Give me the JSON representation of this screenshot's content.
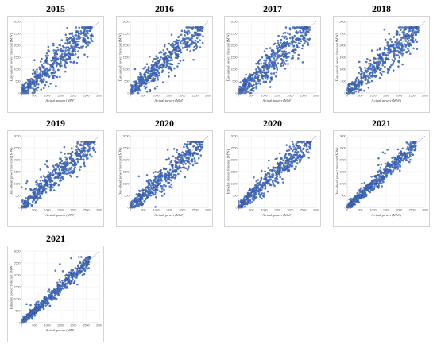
{
  "chart_data": [
    {
      "type": "scatter",
      "title": "2015",
      "xlabel": "Actual power (MW)",
      "ylabel": "Day-ahead power forecast (MW)",
      "xlim": [
        0,
        3000
      ],
      "ylim": [
        0,
        3000
      ],
      "xticks": [
        0,
        500,
        1000,
        1500,
        2000,
        2500,
        3000
      ],
      "yticks": [
        0,
        500,
        1000,
        1500,
        2000,
        2500,
        3000
      ],
      "grid": true,
      "reference_line": "y = x",
      "point_color": "#4472c4",
      "spread": 0.12,
      "x_max": 2750
    },
    {
      "type": "scatter",
      "title": "2016",
      "xlabel": "Actual power (MW)",
      "ylabel": "Day-ahead power forecast (MW)",
      "xlim": [
        0,
        3000
      ],
      "ylim": [
        0,
        3000
      ],
      "xticks": [
        0,
        500,
        1000,
        1500,
        2000,
        2500,
        3000
      ],
      "yticks": [
        0,
        500,
        1000,
        1500,
        2000,
        2500,
        3000
      ],
      "grid": true,
      "reference_line": "y = x",
      "point_color": "#4472c4",
      "spread": 0.11,
      "x_max": 2800
    },
    {
      "type": "scatter",
      "title": "2017",
      "xlabel": "Actual power (MW)",
      "ylabel": "Day-ahead power forecast (MW)",
      "xlim": [
        0,
        3000
      ],
      "ylim": [
        0,
        3000
      ],
      "xticks": [
        0,
        500,
        1000,
        1500,
        2000,
        2500,
        3000
      ],
      "yticks": [
        0,
        500,
        1000,
        1500,
        2000,
        2500,
        3000
      ],
      "grid": true,
      "reference_line": "y = x",
      "point_color": "#4472c4",
      "spread": 0.13,
      "x_max": 2750
    },
    {
      "type": "scatter",
      "title": "2018",
      "xlabel": "Actual power (MW)",
      "ylabel": "Day-ahead power forecast (MW)",
      "xlim": [
        0,
        3000
      ],
      "ylim": [
        0,
        3000
      ],
      "xticks": [
        0,
        500,
        1000,
        1500,
        2000,
        2500,
        3000
      ],
      "yticks": [
        0,
        500,
        1000,
        1500,
        2000,
        2500,
        3000
      ],
      "grid": true,
      "reference_line": "y = x",
      "point_color": "#4472c4",
      "spread": 0.12,
      "x_max": 2750
    },
    {
      "type": "scatter",
      "title": "2019",
      "xlabel": "Actual power (MW)",
      "ylabel": "Day-ahead power forecast (MW)",
      "xlim": [
        0,
        3000
      ],
      "ylim": [
        0,
        3000
      ],
      "xticks": [
        0,
        500,
        1000,
        1500,
        2000,
        2500,
        3000
      ],
      "yticks": [
        0,
        500,
        1000,
        1500,
        2000,
        2500,
        3000
      ],
      "grid": true,
      "reference_line": "y = x",
      "point_color": "#4472c4",
      "spread": 0.1,
      "x_max": 2850
    },
    {
      "type": "scatter",
      "title": "2020",
      "xlabel": "Actual power (MW)",
      "ylabel": "Day-ahead power forecast (MW)",
      "xlim": [
        0,
        3000
      ],
      "ylim": [
        0,
        3000
      ],
      "xticks": [
        0,
        500,
        1000,
        1500,
        2000,
        2500,
        3000
      ],
      "yticks": [
        0,
        500,
        1000,
        1500,
        2000,
        2500,
        3000
      ],
      "grid": true,
      "reference_line": "y = x",
      "point_color": "#4472c4",
      "spread": 0.1,
      "x_max": 2800
    },
    {
      "type": "scatter",
      "title": "2020",
      "xlabel": "Actual power (MW)",
      "ylabel": "Intraday power forecast (MW)",
      "xlim": [
        0,
        3000
      ],
      "ylim": [
        0,
        3000
      ],
      "xticks": [
        0,
        500,
        1000,
        1500,
        2000,
        2500,
        3000
      ],
      "yticks": [
        0,
        500,
        1000,
        1500,
        2000,
        2500,
        3000
      ],
      "grid": true,
      "reference_line": "y = x",
      "point_color": "#4472c4",
      "spread": 0.09,
      "x_max": 2800
    },
    {
      "type": "scatter",
      "title": "2021",
      "xlabel": "Actual power (MW)",
      "ylabel": "Day-ahead power forecast (MW)",
      "xlim": [
        0,
        3000
      ],
      "ylim": [
        0,
        3000
      ],
      "xticks": [
        0,
        500,
        1000,
        1500,
        2000,
        2500,
        3000
      ],
      "yticks": [
        0,
        500,
        1000,
        1500,
        2000,
        2500,
        3000
      ],
      "grid": true,
      "reference_line": "y = x",
      "point_color": "#4472c4",
      "spread": 0.06,
      "x_max": 2650
    },
    {
      "type": "scatter",
      "title": "2021",
      "xlabel": "Actual power (MW)",
      "ylabel": "Intraday power forecast (MW)",
      "xlim": [
        0,
        3000
      ],
      "ylim": [
        0,
        3000
      ],
      "xticks": [
        0,
        500,
        1000,
        1500,
        2000,
        2500,
        3000
      ],
      "yticks": [
        0,
        500,
        1000,
        1500,
        2000,
        2500,
        3000
      ],
      "grid": true,
      "reference_line": "y = x",
      "point_color": "#4472c4",
      "spread": 0.05,
      "x_max": 2650
    }
  ]
}
